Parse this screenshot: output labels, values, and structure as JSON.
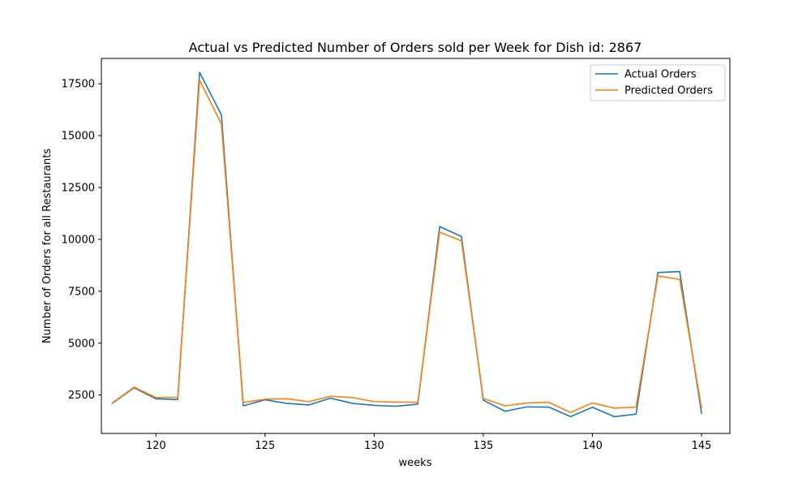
{
  "chart_data": {
    "type": "line",
    "title": "Actual vs Predicted Number of Orders sold per Week for Dish id: 2867",
    "xlabel": "weeks",
    "ylabel": "Number of Orders for all Restaurants",
    "xlim": [
      117.5,
      146.3
    ],
    "ylim": [
      650,
      18720
    ],
    "xticks": [
      120,
      125,
      130,
      135,
      140,
      145
    ],
    "yticks": [
      2500,
      5000,
      7500,
      10000,
      12500,
      15000,
      17500
    ],
    "grid": false,
    "legend_position": "top-right",
    "x": [
      118,
      119,
      120,
      121,
      122,
      123,
      124,
      125,
      126,
      127,
      128,
      129,
      130,
      131,
      132,
      133,
      134,
      135,
      136,
      137,
      138,
      139,
      140,
      141,
      142,
      143,
      144,
      145
    ],
    "series": [
      {
        "name": "Actual Orders",
        "color": "#1f77b4",
        "values": [
          2100,
          2850,
          2320,
          2280,
          18050,
          16000,
          1980,
          2270,
          2100,
          2020,
          2350,
          2100,
          2000,
          1960,
          2060,
          10620,
          10140,
          2250,
          1720,
          1930,
          1920,
          1460,
          1910,
          1460,
          1580,
          8400,
          8450,
          1630
        ]
      },
      {
        "name": "Predicted Orders",
        "color": "#ff7f0e",
        "values": [
          2120,
          2880,
          2380,
          2390,
          17680,
          15560,
          2140,
          2300,
          2320,
          2180,
          2440,
          2380,
          2180,
          2160,
          2150,
          10350,
          9930,
          2330,
          1980,
          2120,
          2150,
          1660,
          2120,
          1870,
          1920,
          8240,
          8070,
          1880
        ]
      }
    ]
  }
}
